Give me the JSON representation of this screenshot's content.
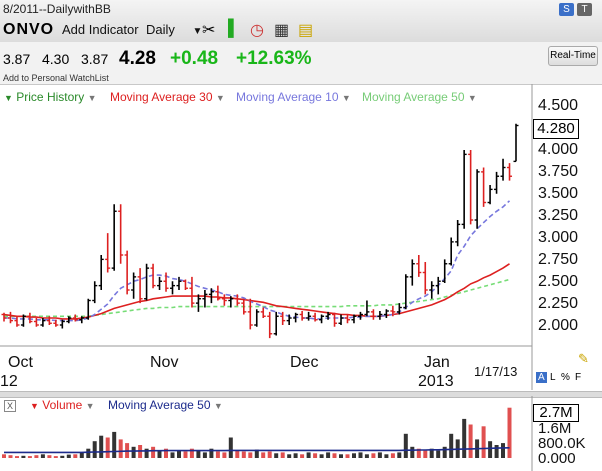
{
  "header": {
    "title": "8/2011--DailywithBB",
    "symbol": "ONVO",
    "add_indicator": "Add Indicator",
    "period": "Daily",
    "realtime": "Real-Time",
    "badge_s": "S",
    "badge_t": "T"
  },
  "quote": {
    "open": "3.87",
    "high": "4.30",
    "low": "3.87",
    "last": "4.28",
    "change": "+0.48",
    "change_pct": "+12.63%",
    "watchlist": "Add to Personal WatchList"
  },
  "legend": {
    "price": "Price History",
    "ma30": "Moving Average 30",
    "ma10": "Moving Average 10",
    "ma50": "Moving Average 50",
    "volume": "Volume",
    "vma50": "Moving Average 50",
    "close_x": "X"
  },
  "axis": {
    "price_ticks": [
      "4.500",
      "4.000",
      "3.750",
      "3.500",
      "3.250",
      "3.000",
      "2.750",
      "2.500",
      "2.250",
      "2.000"
    ],
    "last_label": "4.280",
    "months": [
      "Oct",
      "Nov",
      "Dec",
      "Jan"
    ],
    "year_left": "12",
    "year_right": "2013",
    "date_label": "1/17/13",
    "options": [
      "A",
      "L",
      "%",
      "F"
    ],
    "vol_ticks": [
      "1.6M",
      "800.0K",
      "0.000"
    ],
    "vol_last": "2.7M"
  },
  "colors": {
    "up": "#000000",
    "down": "#dd2020",
    "ma30": "#dd2020",
    "ma10": "#7777dd",
    "ma50": "#77dd77",
    "vol_ma": "#1c2b8c"
  },
  "chart_data": {
    "type": "ohlc",
    "ylim": [
      1.85,
      4.6
    ],
    "ohlc": [
      [
        2.12,
        2.14,
        2.04,
        2.08
      ],
      [
        2.08,
        2.15,
        2.02,
        2.05
      ],
      [
        2.05,
        2.1,
        1.98,
        2.0
      ],
      [
        2.0,
        2.12,
        1.98,
        2.1
      ],
      [
        2.1,
        2.14,
        2.02,
        2.04
      ],
      [
        2.04,
        2.08,
        1.98,
        2.0
      ],
      [
        2.0,
        2.08,
        1.98,
        2.05
      ],
      [
        2.05,
        2.1,
        2.0,
        2.02
      ],
      [
        2.02,
        2.06,
        1.98,
        2.0
      ],
      [
        2.0,
        2.06,
        1.96,
        2.04
      ],
      [
        2.04,
        2.1,
        2.02,
        2.08
      ],
      [
        2.08,
        2.12,
        2.04,
        2.06
      ],
      [
        2.06,
        2.1,
        2.02,
        2.08
      ],
      [
        2.08,
        2.3,
        2.06,
        2.28
      ],
      [
        2.28,
        2.5,
        2.25,
        2.45
      ],
      [
        2.45,
        2.8,
        2.4,
        2.75
      ],
      [
        2.75,
        3.05,
        2.6,
        2.65
      ],
      [
        2.65,
        3.38,
        2.62,
        3.3
      ],
      [
        3.3,
        3.38,
        2.7,
        2.8
      ],
      [
        2.8,
        2.85,
        2.35,
        2.4
      ],
      [
        2.4,
        2.6,
        2.3,
        2.55
      ],
      [
        2.55,
        2.65,
        2.25,
        2.3
      ],
      [
        2.3,
        2.7,
        2.28,
        2.65
      ],
      [
        2.65,
        2.7,
        2.42,
        2.45
      ],
      [
        2.45,
        2.55,
        2.4,
        2.5
      ],
      [
        2.5,
        2.6,
        2.38,
        2.42
      ],
      [
        2.42,
        2.5,
        2.35,
        2.45
      ],
      [
        2.45,
        2.55,
        2.4,
        2.5
      ],
      [
        2.5,
        2.52,
        2.4,
        2.42
      ],
      [
        2.42,
        2.55,
        2.2,
        2.25
      ],
      [
        2.25,
        2.35,
        2.15,
        2.3
      ],
      [
        2.3,
        2.4,
        2.2,
        2.35
      ],
      [
        2.35,
        2.42,
        2.25,
        2.38
      ],
      [
        2.38,
        2.45,
        2.28,
        2.3
      ],
      [
        2.3,
        2.35,
        2.22,
        2.28
      ],
      [
        2.28,
        2.33,
        2.2,
        2.3
      ],
      [
        2.3,
        2.35,
        2.22,
        2.25
      ],
      [
        2.25,
        2.3,
        2.12,
        2.15
      ],
      [
        2.15,
        2.3,
        1.95,
        2.0
      ],
      [
        2.0,
        2.18,
        1.98,
        2.15
      ],
      [
        2.15,
        2.2,
        2.08,
        2.1
      ],
      [
        2.1,
        2.15,
        1.85,
        1.9
      ],
      [
        1.9,
        2.15,
        1.88,
        2.1
      ],
      [
        2.1,
        2.15,
        2.0,
        2.05
      ],
      [
        2.05,
        2.12,
        2.0,
        2.08
      ],
      [
        2.08,
        2.14,
        2.03,
        2.12
      ],
      [
        2.12,
        2.16,
        2.05,
        2.08
      ],
      [
        2.08,
        2.15,
        2.05,
        2.1
      ],
      [
        2.1,
        2.14,
        2.04,
        2.06
      ],
      [
        2.06,
        2.12,
        2.02,
        2.1
      ],
      [
        2.1,
        2.15,
        2.06,
        2.12
      ],
      [
        2.12,
        2.14,
        1.98,
        2.02
      ],
      [
        2.02,
        2.12,
        2.0,
        2.08
      ],
      [
        2.08,
        2.12,
        2.02,
        2.06
      ],
      [
        2.06,
        2.12,
        2.02,
        2.1
      ],
      [
        2.1,
        2.15,
        2.06,
        2.12
      ],
      [
        2.12,
        2.28,
        2.1,
        2.15
      ],
      [
        2.15,
        2.18,
        2.06,
        2.1
      ],
      [
        2.1,
        2.16,
        2.06,
        2.12
      ],
      [
        2.12,
        2.18,
        2.08,
        2.16
      ],
      [
        2.16,
        2.22,
        2.1,
        2.15
      ],
      [
        2.15,
        2.25,
        2.12,
        2.2
      ],
      [
        2.2,
        2.58,
        2.18,
        2.55
      ],
      [
        2.55,
        2.75,
        2.45,
        2.7
      ],
      [
        2.7,
        2.8,
        2.55,
        2.6
      ],
      [
        2.6,
        2.72,
        2.35,
        2.4
      ],
      [
        2.4,
        2.5,
        2.3,
        2.45
      ],
      [
        2.45,
        2.55,
        2.35,
        2.5
      ],
      [
        2.5,
        2.75,
        2.48,
        2.7
      ],
      [
        2.7,
        3.0,
        2.68,
        2.95
      ],
      [
        2.95,
        3.2,
        2.9,
        3.15
      ],
      [
        3.15,
        4.0,
        3.1,
        3.95
      ],
      [
        3.95,
        4.0,
        3.15,
        3.2
      ],
      [
        3.2,
        3.78,
        3.1,
        3.75
      ],
      [
        3.75,
        3.8,
        3.35,
        3.4
      ],
      [
        3.4,
        3.6,
        3.38,
        3.55
      ],
      [
        3.55,
        3.75,
        3.5,
        3.7
      ],
      [
        3.7,
        3.9,
        3.65,
        3.8
      ],
      [
        3.8,
        3.85,
        3.65,
        3.7
      ],
      [
        3.87,
        4.3,
        3.87,
        4.28
      ]
    ],
    "ma10": [
      2.08,
      2.08,
      2.07,
      2.07,
      2.07,
      2.06,
      2.06,
      2.06,
      2.05,
      2.05,
      2.05,
      2.05,
      2.06,
      2.08,
      2.12,
      2.18,
      2.24,
      2.34,
      2.42,
      2.46,
      2.5,
      2.52,
      2.55,
      2.57,
      2.57,
      2.56,
      2.53,
      2.52,
      2.5,
      2.47,
      2.44,
      2.42,
      2.4,
      2.38,
      2.35,
      2.34,
      2.33,
      2.31,
      2.27,
      2.24,
      2.21,
      2.17,
      2.15,
      2.12,
      2.1,
      2.09,
      2.08,
      2.08,
      2.07,
      2.07,
      2.08,
      2.08,
      2.08,
      2.08,
      2.09,
      2.09,
      2.1,
      2.1,
      2.1,
      2.11,
      2.12,
      2.15,
      2.2,
      2.26,
      2.3,
      2.33,
      2.38,
      2.45,
      2.53,
      2.62,
      2.8,
      2.9,
      3.02,
      3.1,
      3.17,
      3.24,
      3.3,
      3.35,
      3.42
    ],
    "ma30": [
      2.12,
      2.11,
      2.1,
      2.1,
      2.09,
      2.09,
      2.08,
      2.08,
      2.08,
      2.07,
      2.07,
      2.07,
      2.08,
      2.09,
      2.11,
      2.13,
      2.16,
      2.19,
      2.21,
      2.23,
      2.25,
      2.27,
      2.28,
      2.3,
      2.31,
      2.32,
      2.33,
      2.33,
      2.33,
      2.33,
      2.33,
      2.33,
      2.32,
      2.32,
      2.31,
      2.31,
      2.3,
      2.29,
      2.28,
      2.27,
      2.26,
      2.24,
      2.22,
      2.21,
      2.2,
      2.19,
      2.18,
      2.17,
      2.16,
      2.15,
      2.14,
      2.13,
      2.12,
      2.12,
      2.11,
      2.11,
      2.1,
      2.1,
      2.1,
      2.11,
      2.12,
      2.13,
      2.15,
      2.17,
      2.19,
      2.21,
      2.23,
      2.26,
      2.29,
      2.33,
      2.38,
      2.42,
      2.47,
      2.5,
      2.54,
      2.57,
      2.61,
      2.65,
      2.7
    ],
    "ma50": [
      2.1,
      2.1,
      2.1,
      2.1,
      2.1,
      2.1,
      2.1,
      2.1,
      2.1,
      2.1,
      2.1,
      2.1,
      2.1,
      2.1,
      2.11,
      2.12,
      2.13,
      2.14,
      2.15,
      2.16,
      2.17,
      2.18,
      2.19,
      2.19,
      2.2,
      2.2,
      2.2,
      2.21,
      2.21,
      2.21,
      2.21,
      2.21,
      2.21,
      2.21,
      2.21,
      2.21,
      2.21,
      2.21,
      2.21,
      2.21,
      2.21,
      2.21,
      2.21,
      2.21,
      2.21,
      2.21,
      2.21,
      2.21,
      2.21,
      2.21,
      2.21,
      2.21,
      2.21,
      2.22,
      2.22,
      2.22,
      2.22,
      2.22,
      2.23,
      2.23,
      2.23,
      2.24,
      2.25,
      2.26,
      2.27,
      2.28,
      2.29,
      2.3,
      2.32,
      2.34,
      2.36,
      2.38,
      2.4,
      2.42,
      2.44,
      2.46,
      2.48,
      2.5,
      2.52
    ],
    "volume": [
      0.2,
      0.15,
      0.1,
      0.12,
      0.1,
      0.15,
      0.2,
      0.15,
      0.1,
      0.12,
      0.18,
      0.2,
      0.3,
      0.5,
      0.9,
      1.2,
      1.1,
      1.4,
      1.0,
      0.8,
      0.6,
      0.7,
      0.5,
      0.6,
      0.4,
      0.5,
      0.3,
      0.4,
      0.35,
      0.5,
      0.4,
      0.3,
      0.5,
      0.35,
      0.3,
      1.1,
      0.4,
      0.35,
      0.3,
      0.45,
      0.3,
      0.35,
      0.25,
      0.3,
      0.2,
      0.25,
      0.2,
      0.3,
      0.25,
      0.2,
      0.3,
      0.25,
      0.2,
      0.2,
      0.25,
      0.3,
      0.2,
      0.25,
      0.3,
      0.2,
      0.25,
      0.3,
      1.3,
      0.6,
      0.5,
      0.4,
      0.5,
      0.4,
      0.6,
      1.3,
      1.0,
      2.1,
      1.8,
      1.0,
      1.7,
      0.9,
      0.7,
      0.8,
      2.7
    ],
    "vol_ma": [
      0.3,
      0.3,
      0.3,
      0.3,
      0.3,
      0.3,
      0.3,
      0.3,
      0.3,
      0.3,
      0.3,
      0.3,
      0.3,
      0.31,
      0.32,
      0.33,
      0.34,
      0.35,
      0.36,
      0.37,
      0.37,
      0.38,
      0.38,
      0.39,
      0.39,
      0.4,
      0.4,
      0.4,
      0.4,
      0.4,
      0.4,
      0.4,
      0.4,
      0.4,
      0.4,
      0.41,
      0.41,
      0.41,
      0.41,
      0.41,
      0.41,
      0.41,
      0.41,
      0.41,
      0.41,
      0.41,
      0.41,
      0.41,
      0.41,
      0.41,
      0.41,
      0.41,
      0.41,
      0.41,
      0.41,
      0.41,
      0.41,
      0.41,
      0.41,
      0.41,
      0.41,
      0.41,
      0.42,
      0.42,
      0.43,
      0.43,
      0.44,
      0.44,
      0.45,
      0.46,
      0.47,
      0.48,
      0.49,
      0.5,
      0.51,
      0.52,
      0.53,
      0.54,
      0.55
    ],
    "vol_ylim": [
      0,
      2.9
    ]
  }
}
